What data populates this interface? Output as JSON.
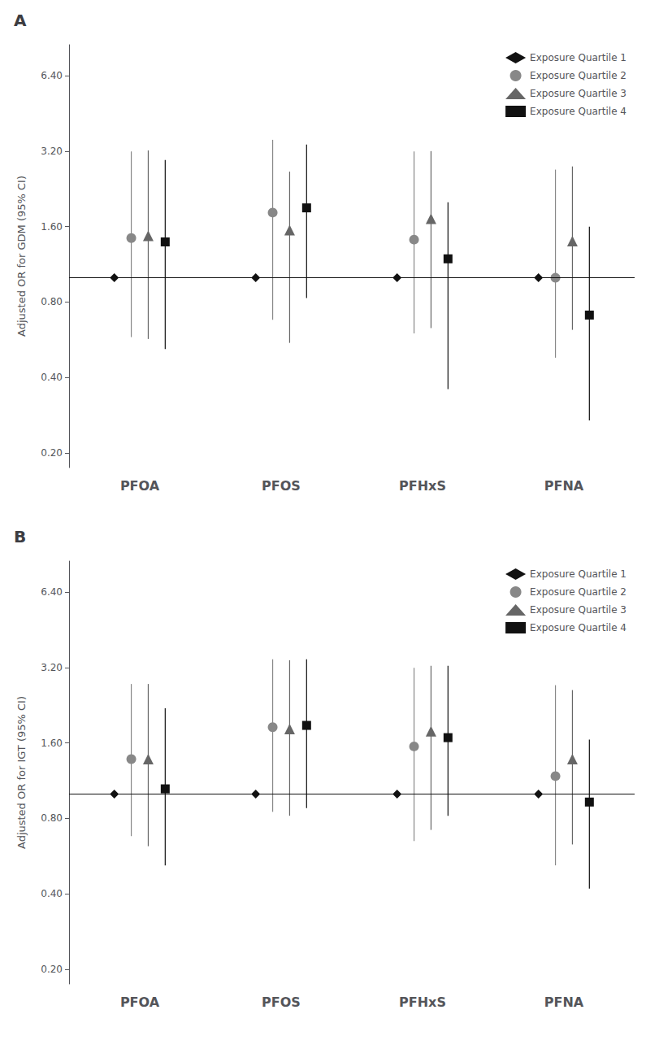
{
  "chart_data": [
    {
      "type": "scatter",
      "title": "A",
      "ylabel": "Adjusted OR for GDM (95% CI)",
      "categories": [
        "PFOA",
        "PFOS",
        "PFHxS",
        "PFNA"
      ],
      "series": [
        {
          "name": "Exposure Quartile 1",
          "color": "#111111",
          "marker": "diamond",
          "values": [
            1.0,
            1.0,
            1.0,
            1.0
          ],
          "lo": [
            1.0,
            1.0,
            1.0,
            1.0
          ],
          "hi": [
            1.0,
            1.0,
            1.0,
            1.0
          ]
        },
        {
          "name": "Exposure Quartile 2",
          "color": "#888888",
          "marker": "circle",
          "values": [
            1.44,
            1.82,
            1.42,
            1.0
          ],
          "lo": [
            0.58,
            0.68,
            0.6,
            0.48
          ],
          "hi": [
            3.19,
            3.55,
            3.19,
            2.7
          ]
        },
        {
          "name": "Exposure Quartile 3",
          "color": "#666666",
          "marker": "triangle",
          "values": [
            1.47,
            1.55,
            1.72,
            1.4
          ],
          "lo": [
            0.57,
            0.55,
            0.63,
            0.62
          ],
          "hi": [
            3.22,
            2.65,
            3.2,
            2.78
          ]
        },
        {
          "name": "Exposure Quartile 4",
          "color": "#111111",
          "marker": "square",
          "values": [
            1.39,
            1.9,
            1.19,
            0.71
          ],
          "lo": [
            0.52,
            0.83,
            0.36,
            0.27
          ],
          "hi": [
            2.95,
            3.4,
            2.0,
            1.6
          ]
        }
      ],
      "hline": 1.0,
      "log": "y",
      "ylim": [
        0.175,
        8.5
      ],
      "yticks": [
        {
          "value": 0.2,
          "label": "0.20"
        },
        {
          "value": 0.4,
          "label": "0.40"
        },
        {
          "value": 0.8,
          "label": "0.80"
        },
        {
          "value": 1.6,
          "label": "1.60"
        },
        {
          "value": 3.2,
          "label": "3.20"
        },
        {
          "value": 6.4,
          "label": "6.40"
        }
      ],
      "grid": false,
      "legend": "upper right"
    },
    {
      "type": "scatter",
      "title": "B",
      "ylabel": "Adjusted OR for IGT (95% CI)",
      "categories": [
        "PFOA",
        "PFOS",
        "PFHxS",
        "PFNA"
      ],
      "series": [
        {
          "name": "Exposure Quartile 1",
          "color": "#111111",
          "marker": "diamond",
          "values": [
            1.0,
            1.0,
            1.0,
            1.0
          ],
          "lo": [
            1.0,
            1.0,
            1.0,
            1.0
          ],
          "hi": [
            1.0,
            1.0,
            1.0,
            1.0
          ]
        },
        {
          "name": "Exposure Quartile 2",
          "color": "#888888",
          "marker": "circle",
          "values": [
            1.38,
            1.85,
            1.55,
            1.18
          ],
          "lo": [
            0.68,
            0.85,
            0.65,
            0.52
          ],
          "hi": [
            2.75,
            3.45,
            3.19,
            2.72
          ]
        },
        {
          "name": "Exposure Quartile 3",
          "color": "#666666",
          "marker": "triangle",
          "values": [
            1.38,
            1.82,
            1.78,
            1.38
          ],
          "lo": [
            0.62,
            0.82,
            0.72,
            0.63
          ],
          "hi": [
            2.75,
            3.42,
            3.25,
            2.6
          ]
        },
        {
          "name": "Exposure Quartile 4",
          "color": "#111111",
          "marker": "square",
          "values": [
            1.05,
            1.88,
            1.68,
            0.93
          ],
          "lo": [
            0.52,
            0.88,
            0.82,
            0.42
          ],
          "hi": [
            2.2,
            3.45,
            3.25,
            1.65
          ]
        }
      ],
      "hline": 1.0,
      "log": "y",
      "ylim": [
        0.175,
        8.5
      ],
      "yticks": [
        {
          "value": 0.2,
          "label": "0.20"
        },
        {
          "value": 0.4,
          "label": "0.40"
        },
        {
          "value": 0.8,
          "label": "0.80"
        },
        {
          "value": 1.6,
          "label": "1.60"
        },
        {
          "value": 3.2,
          "label": "3.20"
        },
        {
          "value": 6.4,
          "label": "6.40"
        }
      ],
      "grid": false,
      "legend": "upper right"
    }
  ]
}
